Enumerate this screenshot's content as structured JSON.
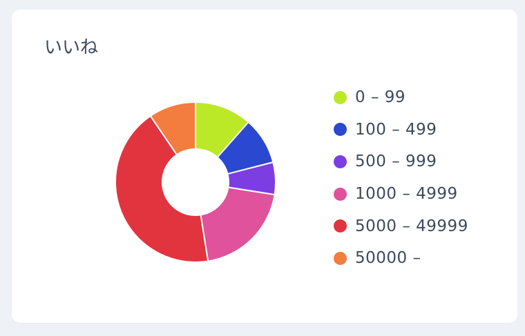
{
  "card": {
    "title": "いいね"
  },
  "chart_data": {
    "type": "pie",
    "donut": true,
    "categories": [
      "0 – 99",
      "100 – 499",
      "500 – 999",
      "1000 – 4999",
      "5000 – 49999",
      "50000 –"
    ],
    "values": [
      11.5,
      9.5,
      6.5,
      20,
      43,
      9.5
    ],
    "colors": [
      "#bbe927",
      "#2b48d0",
      "#7c3ee3",
      "#e0529c",
      "#e2343f",
      "#f37c3f"
    ],
    "legend_position": "right"
  }
}
